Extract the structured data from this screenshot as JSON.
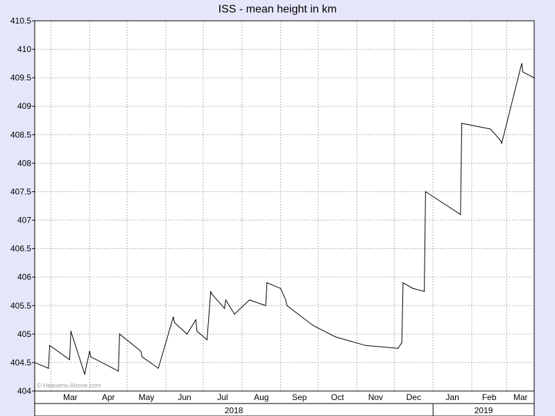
{
  "chart_data": {
    "type": "line",
    "title": "ISS - mean height in km",
    "watermark": "© Heavens-Above.com",
    "ylim": [
      404,
      410.5
    ],
    "yticks": [
      404,
      404.5,
      405,
      405.5,
      406,
      406.5,
      407,
      407.5,
      408,
      408.5,
      409,
      409.5,
      410,
      410.5
    ],
    "ytick_labels": [
      "404",
      "404.5",
      "405",
      "405.5",
      "406",
      "406.5",
      "407",
      "407.5",
      "408",
      "408.5",
      "409",
      "409.5",
      "410",
      "410.5"
    ],
    "xlim": [
      "2018-02-16",
      "2019-03-23"
    ],
    "month_labels": [
      "Mar",
      "Apr",
      "May",
      "Jun",
      "Jul",
      "Aug",
      "Sep",
      "Oct",
      "Nov",
      "Dec",
      "Jan",
      "Feb",
      "Mar"
    ],
    "month_starts": [
      "2018-03-01",
      "2018-04-01",
      "2018-05-01",
      "2018-06-01",
      "2018-07-01",
      "2018-08-01",
      "2018-09-01",
      "2018-10-01",
      "2018-11-01",
      "2018-12-01",
      "2019-01-01",
      "2019-02-01",
      "2019-03-01",
      "2019-04-01"
    ],
    "year_labels": [
      "2018",
      "2019"
    ],
    "year_starts": [
      "2018-02-16",
      "2019-01-01",
      "2019-03-23"
    ],
    "grid": true,
    "series_color": "#000000",
    "series": [
      {
        "x": [
          "2018-02-16",
          "2018-02-27",
          "2018-02-28",
          "2018-03-16",
          "2018-03-17",
          "2018-03-28",
          "2018-04-01",
          "2018-04-02",
          "2018-04-24",
          "2018-04-25",
          "2018-05-12",
          "2018-05-13",
          "2018-05-26",
          "2018-06-07",
          "2018-06-08",
          "2018-06-18",
          "2018-06-25",
          "2018-06-26",
          "2018-07-04",
          "2018-07-07",
          "2018-07-08",
          "2018-07-18",
          "2018-07-19",
          "2018-07-26",
          "2018-08-07",
          "2018-08-20",
          "2018-08-21",
          "2018-09-01",
          "2018-09-05",
          "2018-09-06",
          "2018-09-27",
          "2018-10-15",
          "2018-11-08",
          "2018-12-04",
          "2018-12-07",
          "2018-12-08",
          "2018-12-16",
          "2018-12-25",
          "2018-12-26",
          "2019-01-23",
          "2019-01-24",
          "2019-02-16",
          "2019-02-24",
          "2019-02-25",
          "2019-03-13",
          "2019-03-14",
          "2019-03-23"
        ],
        "y": [
          404.5,
          404.4,
          404.8,
          404.55,
          405.05,
          404.3,
          404.7,
          404.6,
          404.35,
          405.0,
          404.7,
          404.6,
          404.4,
          405.3,
          405.2,
          405.0,
          405.25,
          405.05,
          404.9,
          405.75,
          405.7,
          405.45,
          405.6,
          405.35,
          405.6,
          405.5,
          405.9,
          405.8,
          405.6,
          405.5,
          405.15,
          404.95,
          404.8,
          404.75,
          404.85,
          405.9,
          405.8,
          405.75,
          407.5,
          407.1,
          408.7,
          408.6,
          408.4,
          408.35,
          409.75,
          409.6,
          409.5
        ]
      }
    ]
  }
}
